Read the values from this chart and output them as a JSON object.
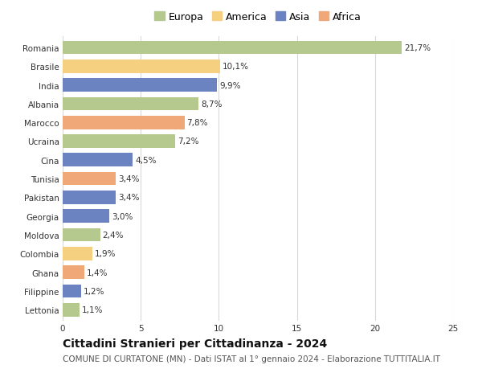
{
  "countries": [
    "Romania",
    "Brasile",
    "India",
    "Albania",
    "Marocco",
    "Ucraina",
    "Cina",
    "Tunisia",
    "Pakistan",
    "Georgia",
    "Moldova",
    "Colombia",
    "Ghana",
    "Filippine",
    "Lettonia"
  ],
  "values": [
    21.7,
    10.1,
    9.9,
    8.7,
    7.8,
    7.2,
    4.5,
    3.4,
    3.4,
    3.0,
    2.4,
    1.9,
    1.4,
    1.2,
    1.1
  ],
  "labels": [
    "21,7%",
    "10,1%",
    "9,9%",
    "8,7%",
    "7,8%",
    "7,2%",
    "4,5%",
    "3,4%",
    "3,4%",
    "3,0%",
    "2,4%",
    "1,9%",
    "1,4%",
    "1,2%",
    "1,1%"
  ],
  "continents": [
    "Europa",
    "America",
    "Asia",
    "Europa",
    "Africa",
    "Europa",
    "Asia",
    "Africa",
    "Asia",
    "Asia",
    "Europa",
    "America",
    "Africa",
    "Asia",
    "Europa"
  ],
  "colors": {
    "Europa": "#b5c98e",
    "America": "#f5d080",
    "Asia": "#6b83c0",
    "Africa": "#f0a878"
  },
  "legend_order": [
    "Europa",
    "America",
    "Asia",
    "Africa"
  ],
  "title": "Cittadini Stranieri per Cittadinanza - 2024",
  "subtitle": "COMUNE DI CURTATONE (MN) - Dati ISTAT al 1° gennaio 2024 - Elaborazione TUTTITALIA.IT",
  "xlim": [
    0,
    25
  ],
  "xticks": [
    0,
    5,
    10,
    15,
    20,
    25
  ],
  "background_color": "#ffffff",
  "grid_color": "#d8d8d8",
  "bar_height": 0.72,
  "title_fontsize": 10,
  "subtitle_fontsize": 7.5,
  "label_fontsize": 7.5,
  "tick_fontsize": 7.5,
  "legend_fontsize": 9
}
